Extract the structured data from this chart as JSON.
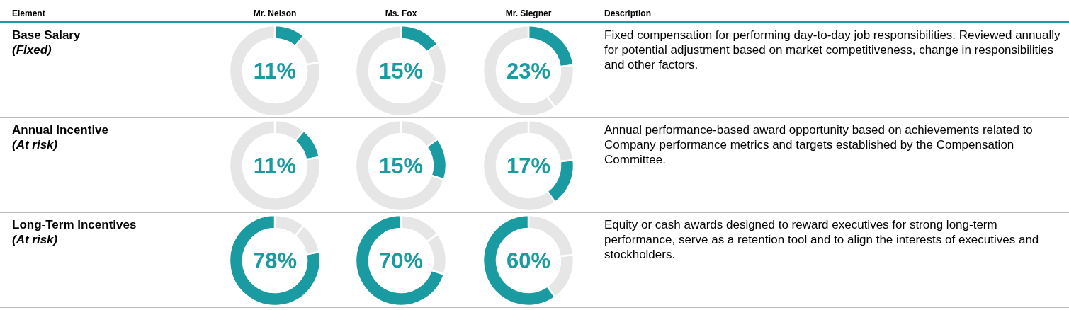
{
  "chart_data": [
    {
      "type": "other",
      "annotations": [
        "Element",
        "Mr. Nelson",
        "Ms. Fox",
        "Mr. Siegner",
        "Description"
      ]
    },
    {
      "type": "other",
      "title": "Base Salary",
      "subtitle": "(Fixed)"
    },
    {
      "type": "donut",
      "categories": [
        null,
        null,
        null
      ],
      "values": [
        11,
        11,
        78
      ],
      "colors": [
        "#1a9ba1",
        "#e6e6e6",
        "#e6e6e6"
      ],
      "annotations": [
        "11%"
      ]
    },
    {
      "type": "donut",
      "categories": [
        null,
        null,
        null
      ],
      "values": [
        15,
        15,
        70
      ],
      "colors": [
        "#1a9ba1",
        "#e6e6e6",
        "#e6e6e6"
      ],
      "annotations": [
        "15%"
      ]
    },
    {
      "type": "donut",
      "categories": [
        null,
        null,
        null
      ],
      "values": [
        23,
        17,
        60
      ],
      "colors": [
        "#1a9ba1",
        "#e6e6e6",
        "#e6e6e6"
      ],
      "annotations": [
        "23%"
      ]
    },
    {
      "type": "other",
      "annotations": [
        "Fixed compensation for performing day-to-day job responsibilities. Reviewed annually for potential adjustment based on market competitiveness, change in responsibilities and other factors."
      ]
    },
    {
      "type": "other",
      "title": "Annual Incentive",
      "subtitle": "(At risk)"
    },
    {
      "type": "donut",
      "categories": [
        null,
        null,
        null
      ],
      "values": [
        11,
        11,
        78
      ],
      "colors": [
        "#e6e6e6",
        "#1a9ba1",
        "#e6e6e6"
      ],
      "annotations": [
        "11%"
      ]
    },
    {
      "type": "donut",
      "categories": [
        null,
        null,
        null
      ],
      "values": [
        15,
        15,
        70
      ],
      "colors": [
        "#e6e6e6",
        "#1a9ba1",
        "#e6e6e6"
      ],
      "annotations": [
        "15%"
      ]
    },
    {
      "type": "donut",
      "categories": [
        null,
        null,
        null
      ],
      "values": [
        23,
        17,
        60
      ],
      "colors": [
        "#e6e6e6",
        "#1a9ba1",
        "#e6e6e6"
      ],
      "annotations": [
        "17%"
      ]
    },
    {
      "type": "other",
      "annotations": [
        "Annual performance-based award opportunity based on achievements related to Company performance metrics and targets established by the Compensation Committee."
      ]
    },
    {
      "type": "other",
      "title": "Long-Term Incentives",
      "subtitle": "(At risk)"
    },
    {
      "type": "donut",
      "categories": [
        null,
        null,
        null
      ],
      "values": [
        11,
        11,
        78
      ],
      "colors": [
        "#e6e6e6",
        "#e6e6e6",
        "#1a9ba1"
      ],
      "annotations": [
        "78%"
      ]
    },
    {
      "type": "donut",
      "categories": [
        null,
        null,
        null
      ],
      "values": [
        15,
        15,
        70
      ],
      "colors": [
        "#e6e6e6",
        "#e6e6e6",
        "#1a9ba1"
      ],
      "annotations": [
        "70%"
      ]
    },
    {
      "type": "donut",
      "categories": [
        null,
        null,
        null
      ],
      "values": [
        23,
        17,
        60
      ],
      "colors": [
        "#e6e6e6",
        "#e6e6e6",
        "#1a9ba1"
      ],
      "annotations": [
        "60%"
      ]
    },
    {
      "type": "other",
      "annotations": [
        "Equity or cash awards designed to reward executives for strong long-term performance, serve as a retention tool and to align the interests of executives and stockholders."
      ]
    }
  ]
}
